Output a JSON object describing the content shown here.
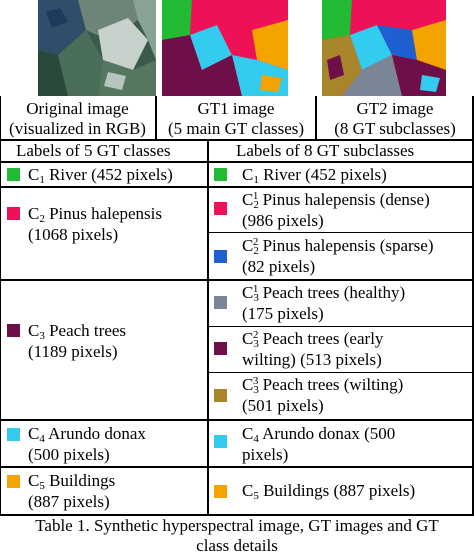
{
  "images": {
    "original": {
      "caption_line1": "Original image",
      "caption_line2": "(visualized in RGB)"
    },
    "gt1": {
      "caption_line1": "GT1 image",
      "caption_line2": "(5 main GT classes)"
    },
    "gt2": {
      "caption_line1": "GT2 image",
      "caption_line2": "(8 GT subclasses)"
    }
  },
  "headers": {
    "left": "Labels of 5 GT classes",
    "right": "Labels of 8 GT subclasses"
  },
  "classes": [
    {
      "c": "C",
      "sub": "1",
      "name": " River (452 pixels)",
      "color": "#22bb33"
    },
    {
      "c": "C",
      "sub": "2",
      "name_l1": " Pinus halepensis",
      "name_l2": "(1068 pixels)",
      "color": "#ee1155"
    },
    {
      "c": "C",
      "sub": "3",
      "name_l1": " Peach trees",
      "name_l2": "(1189 pixels)",
      "color": "#6e0f4a"
    },
    {
      "c": "C",
      "sub": "4",
      "name_l1": " Arundo donax",
      "name_l2": "(500 pixels)",
      "color": "#33ccee"
    },
    {
      "c": "C",
      "sub": "5",
      "name_l1": " Buildings",
      "name_l2": "(887 pixels)",
      "color": "#f5a300"
    }
  ],
  "subclasses": [
    {
      "c": "C",
      "sub": "1",
      "sup": "",
      "l1": " River (452 pixels)",
      "l2": "",
      "color": "#22bb33"
    },
    {
      "c": "C",
      "sub": "2",
      "sup": "1",
      "l1": " Pinus halepensis (dense)",
      "l2": "(986 pixels)",
      "color": "#ee1155"
    },
    {
      "c": "C",
      "sub": "2",
      "sup": "2",
      "l1": " Pinus halepensis (sparse)",
      "l2": "(82 pixels)",
      "color": "#1f5fd0"
    },
    {
      "c": "C",
      "sub": "3",
      "sup": "1",
      "l1": " Peach trees (healthy)",
      "l2": "(175 pixels)",
      "color": "#7a8696"
    },
    {
      "c": "C",
      "sub": "3",
      "sup": "2",
      "l1": " Peach trees (early",
      "l2": "wilting) (513 pixels)",
      "color": "#6e0f4a"
    },
    {
      "c": "C",
      "sub": "3",
      "sup": "3",
      "l1": " Peach trees (wilting)",
      "l2": "(501 pixels)",
      "color": "#a8852a"
    },
    {
      "c": "C",
      "sub": "4",
      "sup": "",
      "l1": " Arundo donax (500",
      "l2": "pixels)",
      "color": "#33ccee"
    },
    {
      "c": "C",
      "sub": "5",
      "sup": "",
      "l1": " Buildings (887 pixels)",
      "l2": "",
      "color": "#f5a300"
    }
  ],
  "caption": {
    "line1": "Table 1. Synthetic hyperspectral image, GT images and GT",
    "line2": "class details"
  }
}
